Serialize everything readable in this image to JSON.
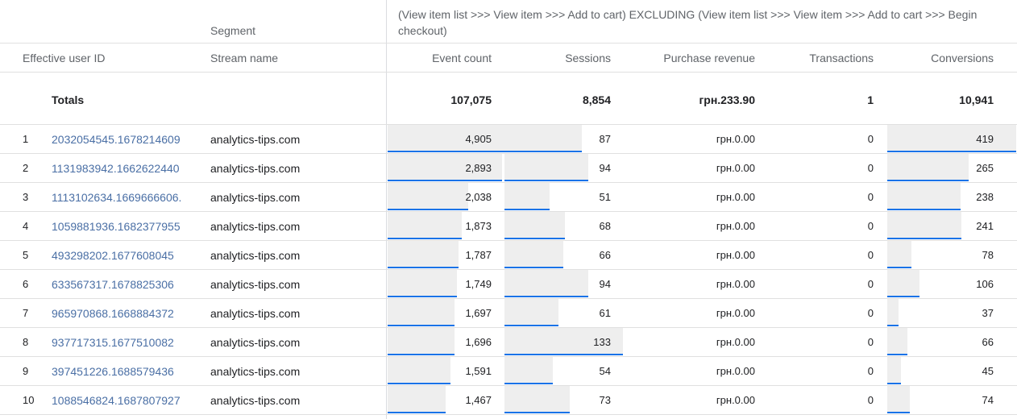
{
  "segment": {
    "label": "Segment",
    "title": "(View item list >>> View item >>> Add to cart) EXCLUDING (View item list >>> View item >>> Add to cart >>> Begin checkout)"
  },
  "headers": {
    "user_id": "Effective user ID",
    "stream": "Stream name",
    "event_count": "Event count",
    "sessions": "Sessions",
    "revenue": "Purchase revenue",
    "transactions": "Transactions",
    "conversions": "Conversions"
  },
  "totals": {
    "label": "Totals",
    "event_count": "107,075",
    "sessions": "8,854",
    "revenue": "грн.233.90",
    "transactions": "1",
    "conversions": "10,941"
  },
  "rows": [
    {
      "num": "1",
      "user_id": "2032054545.1678214609",
      "stream": "analytics-tips.com",
      "event_count": "4,905",
      "ev_v": 4905,
      "sessions": "87",
      "ses_v": 87,
      "revenue": "грн.0.00",
      "transactions": "0",
      "conversions": "419",
      "conv_v": 419
    },
    {
      "num": "2",
      "user_id": "1131983942.1662622440",
      "stream": "analytics-tips.com",
      "event_count": "2,893",
      "ev_v": 2893,
      "sessions": "94",
      "ses_v": 94,
      "revenue": "грн.0.00",
      "transactions": "0",
      "conversions": "265",
      "conv_v": 265
    },
    {
      "num": "3",
      "user_id": "1113102634.1669666606.",
      "stream": "analytics-tips.com",
      "event_count": "2,038",
      "ev_v": 2038,
      "sessions": "51",
      "ses_v": 51,
      "revenue": "грн.0.00",
      "transactions": "0",
      "conversions": "238",
      "conv_v": 238
    },
    {
      "num": "4",
      "user_id": "1059881936.1682377955",
      "stream": "analytics-tips.com",
      "event_count": "1,873",
      "ev_v": 1873,
      "sessions": "68",
      "ses_v": 68,
      "revenue": "грн.0.00",
      "transactions": "0",
      "conversions": "241",
      "conv_v": 241
    },
    {
      "num": "5",
      "user_id": "493298202.1677608045",
      "stream": "analytics-tips.com",
      "event_count": "1,787",
      "ev_v": 1787,
      "sessions": "66",
      "ses_v": 66,
      "revenue": "грн.0.00",
      "transactions": "0",
      "conversions": "78",
      "conv_v": 78
    },
    {
      "num": "6",
      "user_id": "633567317.1678825306",
      "stream": "analytics-tips.com",
      "event_count": "1,749",
      "ev_v": 1749,
      "sessions": "94",
      "ses_v": 94,
      "revenue": "грн.0.00",
      "transactions": "0",
      "conversions": "106",
      "conv_v": 106
    },
    {
      "num": "7",
      "user_id": "965970868.1668884372",
      "stream": "analytics-tips.com",
      "event_count": "1,697",
      "ev_v": 1697,
      "sessions": "61",
      "ses_v": 61,
      "revenue": "грн.0.00",
      "transactions": "0",
      "conversions": "37",
      "conv_v": 37
    },
    {
      "num": "8",
      "user_id": "937717315.1677510082",
      "stream": "analytics-tips.com",
      "event_count": "1,696",
      "ev_v": 1696,
      "sessions": "133",
      "ses_v": 133,
      "revenue": "грн.0.00",
      "transactions": "0",
      "conversions": "66",
      "conv_v": 66
    },
    {
      "num": "9",
      "user_id": "397451226.1688579436",
      "stream": "analytics-tips.com",
      "event_count": "1,591",
      "ev_v": 1591,
      "sessions": "54",
      "ses_v": 54,
      "revenue": "грн.0.00",
      "transactions": "0",
      "conversions": "45",
      "conv_v": 45
    },
    {
      "num": "10",
      "user_id": "1088546824.1687807927",
      "stream": "analytics-tips.com",
      "event_count": "1,467",
      "ev_v": 1467,
      "sessions": "73",
      "ses_v": 73,
      "revenue": "грн.0.00",
      "transactions": "0",
      "conversions": "74",
      "conv_v": 74
    }
  ],
  "colors": {
    "bar_fill": "#eeeeee",
    "bar_accent": "#1a73e8",
    "link": "#4a6fa5"
  }
}
